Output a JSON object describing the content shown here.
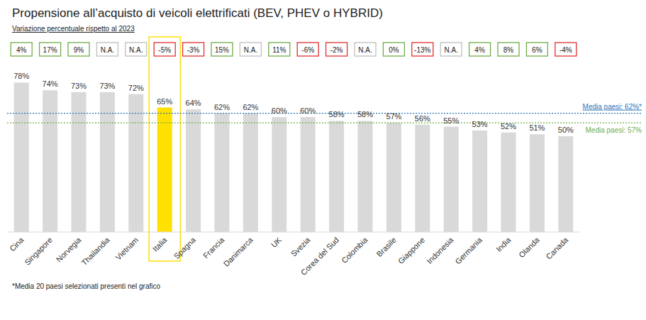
{
  "chart_data": {
    "type": "bar",
    "title": "Propensione all’acquisto di veicoli elettrificati (BEV, PHEV o HYBRID)",
    "subtitle": "Variazione percentuale rispetto al 2023",
    "categories": [
      "Cina",
      "Singapore",
      "Norvegia",
      "Thailandia",
      "Vietnam",
      "Italia",
      "Spagna",
      "Francia",
      "Danimarca",
      "UK",
      "Svezia",
      "Corea del Sud",
      "Colombia",
      "Brasile",
      "Giappone",
      "Indonesia",
      "Germania",
      "India",
      "Olanda",
      "Canada"
    ],
    "values": [
      78,
      74,
      73,
      73,
      72,
      65,
      64,
      62,
      62,
      60,
      60,
      58,
      58,
      57,
      56,
      55,
      53,
      52,
      51,
      50
    ],
    "value_labels": [
      "78%",
      "74%",
      "73%",
      "73%",
      "72%",
      "65%",
      "64%",
      "62%",
      "62%",
      "60%",
      "60%",
      "58%",
      "58%",
      "57%",
      "56%",
      "55%",
      "53%",
      "52%",
      "51%",
      "50%"
    ],
    "colors": [
      "#d9d9d9",
      "#d9d9d9",
      "#d9d9d9",
      "#d9d9d9",
      "#d9d9d9",
      "#ffe000",
      "#d9d9d9",
      "#d9d9d9",
      "#d9d9d9",
      "#d9d9d9",
      "#d9d9d9",
      "#d9d9d9",
      "#d9d9d9",
      "#d9d9d9",
      "#d9d9d9",
      "#d9d9d9",
      "#d9d9d9",
      "#d9d9d9",
      "#d9d9d9",
      "#d9d9d9"
    ],
    "change_values": [
      4,
      17,
      9,
      null,
      null,
      -5,
      -3,
      15,
      null,
      11,
      -6,
      -2,
      null,
      0,
      -13,
      null,
      4,
      8,
      6,
      -4
    ],
    "change_labels": [
      "4%",
      "17%",
      "9%",
      "N.A.",
      "N.A.",
      "-5%",
      "-3%",
      "15%",
      "N.A.",
      "11%",
      "-6%",
      "-2%",
      "N.A.",
      "0%",
      "-13%",
      "N.A.",
      "4%",
      "8%",
      "6%",
      "-4%"
    ],
    "reference_lines": [
      {
        "value": 62,
        "label": "Media paesi: 62%*",
        "color": "#2e75b6",
        "line_style": "dotted"
      },
      {
        "value": 57,
        "label": "Media paesi: 57%",
        "color": "#70ad47",
        "line_style": "dotted"
      }
    ],
    "footnote": "*Media 20 paesi selezionati presenti nel grafico",
    "ylim": [
      0,
      80
    ],
    "data_labels": true,
    "tick_labels": "x",
    "grid": false
  }
}
